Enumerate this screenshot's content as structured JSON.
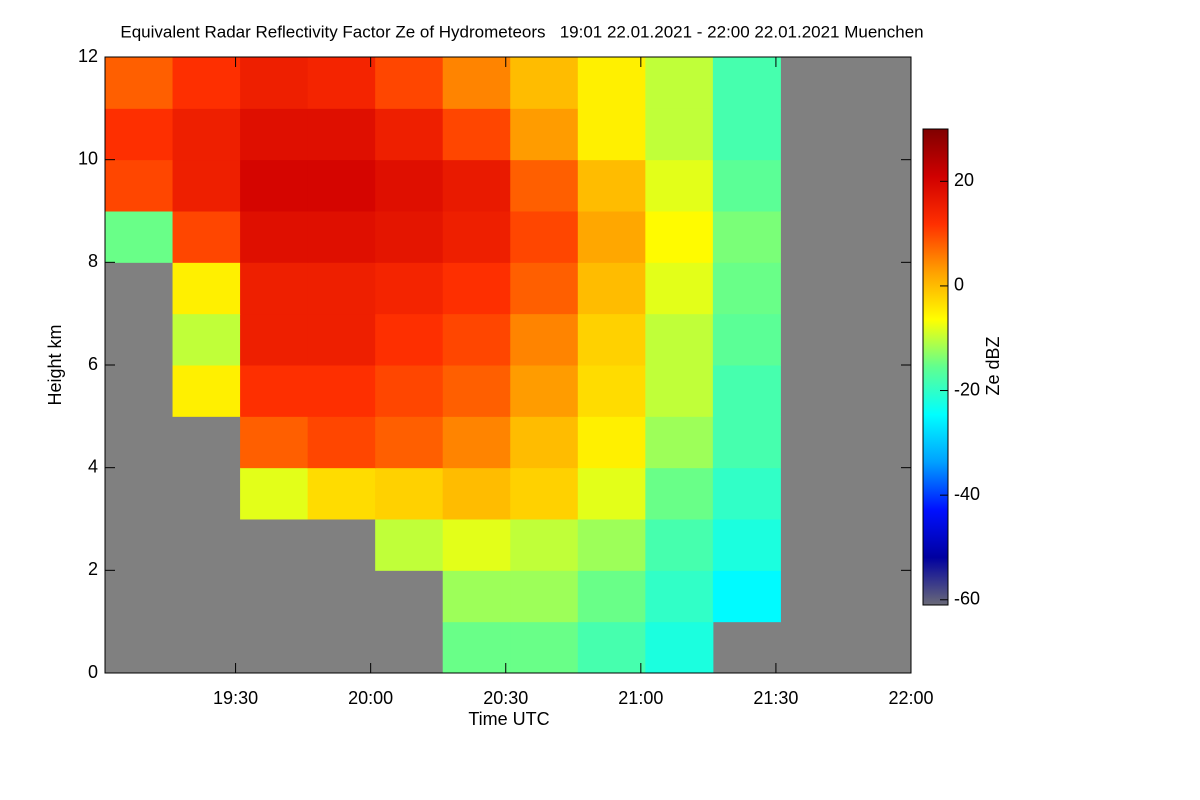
{
  "chart_data": {
    "type": "heatmap",
    "title": "Equivalent Radar Reflectivity Factor Ze of Hydrometeors   19:01 22.01.2021 - 22:00 22.01.2021 Muenchen",
    "xlabel": "Time UTC",
    "ylabel": "Height km",
    "colorbar_label": "Ze dBZ",
    "xlim": [
      19.0167,
      22.0
    ],
    "xticks": [
      {
        "value": 19.5,
        "label": "19:30"
      },
      {
        "value": 20.0,
        "label": "20:00"
      },
      {
        "value": 20.5,
        "label": "20:30"
      },
      {
        "value": 21.0,
        "label": "21:00"
      },
      {
        "value": 21.5,
        "label": "21:30"
      },
      {
        "value": 22.0,
        "label": "22:00"
      }
    ],
    "ylim": [
      0,
      12
    ],
    "yticks": [
      0,
      2,
      4,
      6,
      8,
      10,
      12
    ],
    "xbins": [
      19.0167,
      19.2667,
      19.5167,
      19.7667,
      20.0167,
      20.2667,
      20.5167,
      20.7667,
      21.0167,
      21.2667,
      21.5167,
      21.7667,
      22.0
    ],
    "ybins": [
      0,
      1,
      2,
      3,
      4,
      5,
      6,
      7,
      8,
      9,
      10,
      11,
      12
    ],
    "z": [
      [
        null,
        null,
        null,
        null,
        null,
        -15,
        -15,
        -18,
        -22,
        null,
        null,
        null
      ],
      [
        null,
        null,
        null,
        null,
        null,
        -12,
        -12,
        -15,
        -20,
        -25,
        null,
        null
      ],
      [
        null,
        null,
        null,
        null,
        -10,
        -8,
        -10,
        -12,
        -18,
        -22,
        null,
        null
      ],
      [
        null,
        null,
        -8,
        -3,
        -2,
        0,
        -2,
        -8,
        -15,
        -20,
        null,
        null
      ],
      [
        null,
        null,
        8,
        10,
        8,
        5,
        0,
        -5,
        -12,
        -18,
        null,
        null
      ],
      [
        null,
        -5,
        12,
        12,
        10,
        8,
        3,
        -3,
        -10,
        -18,
        null,
        null
      ],
      [
        null,
        -10,
        15,
        15,
        12,
        10,
        5,
        -2,
        -10,
        -16,
        null,
        null
      ],
      [
        null,
        -5,
        15,
        15,
        14,
        12,
        8,
        0,
        -8,
        -15,
        null,
        null
      ],
      [
        -15,
        10,
        18,
        18,
        17,
        15,
        10,
        2,
        -6,
        -14,
        null,
        null
      ],
      [
        10,
        15,
        20,
        20,
        18,
        16,
        8,
        0,
        -8,
        -16,
        null,
        null
      ],
      [
        12,
        15,
        18,
        18,
        15,
        10,
        3,
        -5,
        -10,
        -18,
        null,
        null
      ],
      [
        8,
        12,
        15,
        14,
        10,
        5,
        0,
        -5,
        -10,
        -18,
        null,
        null
      ]
    ],
    "clim": [
      -61,
      30
    ],
    "cticks": [
      -60,
      -40,
      -20,
      0,
      20
    ],
    "colormap": [
      "#6a6a78",
      "#0000a0",
      "#0010ff",
      "#00a0ff",
      "#00ffff",
      "#60ff90",
      "#ffff00",
      "#ffa000",
      "#ff3000",
      "#d00000",
      "#800000"
    ],
    "nodata_color": "#808080"
  }
}
